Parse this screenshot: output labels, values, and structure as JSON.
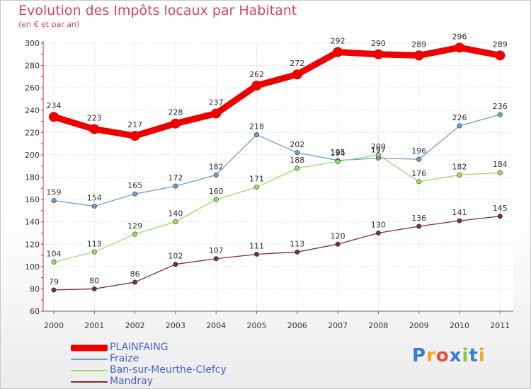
{
  "header": {
    "title": "Evolution des Impôts locaux par Habitant",
    "subtitle": "(en € et par an)"
  },
  "logo": {
    "text": "Proxiti",
    "colors": [
      "#3a7bd5",
      "#f5a623",
      "#e94e3c",
      "#3a7bd5",
      "#8cc63f",
      "#3a7bd5",
      "#f5a623"
    ]
  },
  "chart_data": {
    "type": "line",
    "title": "Evolution des Impôts locaux par Habitant",
    "subtitle": "(en € et par an)",
    "xlabel": "",
    "ylabel": "",
    "x": [
      "2000",
      "2001",
      "2002",
      "2003",
      "2004",
      "2005",
      "2006",
      "2007",
      "2008",
      "2009",
      "2010",
      "2011"
    ],
    "ylim": [
      60,
      300
    ],
    "yticks": [
      60,
      80,
      100,
      120,
      140,
      160,
      180,
      200,
      220,
      240,
      260,
      280,
      300
    ],
    "grid": true,
    "legend_position": "bottom-left",
    "series": [
      {
        "name": "PLAINFAING",
        "color": "#ee0000",
        "emphasis": true,
        "values": [
          234,
          223,
          217,
          228,
          237,
          262,
          272,
          292,
          290,
          289,
          296,
          289
        ]
      },
      {
        "name": "Fraize",
        "color": "#6f9ecf",
        "emphasis": false,
        "values": [
          159,
          154,
          165,
          172,
          182,
          218,
          202,
          195,
          197,
          196,
          226,
          236
        ]
      },
      {
        "name": "Ban-sur-Meurthe-Clefcy",
        "color": "#99dd66",
        "emphasis": false,
        "values": [
          104,
          113,
          129,
          140,
          160,
          171,
          188,
          194,
          200,
          176,
          182,
          184
        ]
      },
      {
        "name": "Mandray",
        "color": "#7a3030",
        "emphasis": false,
        "values": [
          79,
          80,
          86,
          102,
          107,
          111,
          113,
          120,
          130,
          136,
          141,
          145
        ]
      }
    ]
  }
}
